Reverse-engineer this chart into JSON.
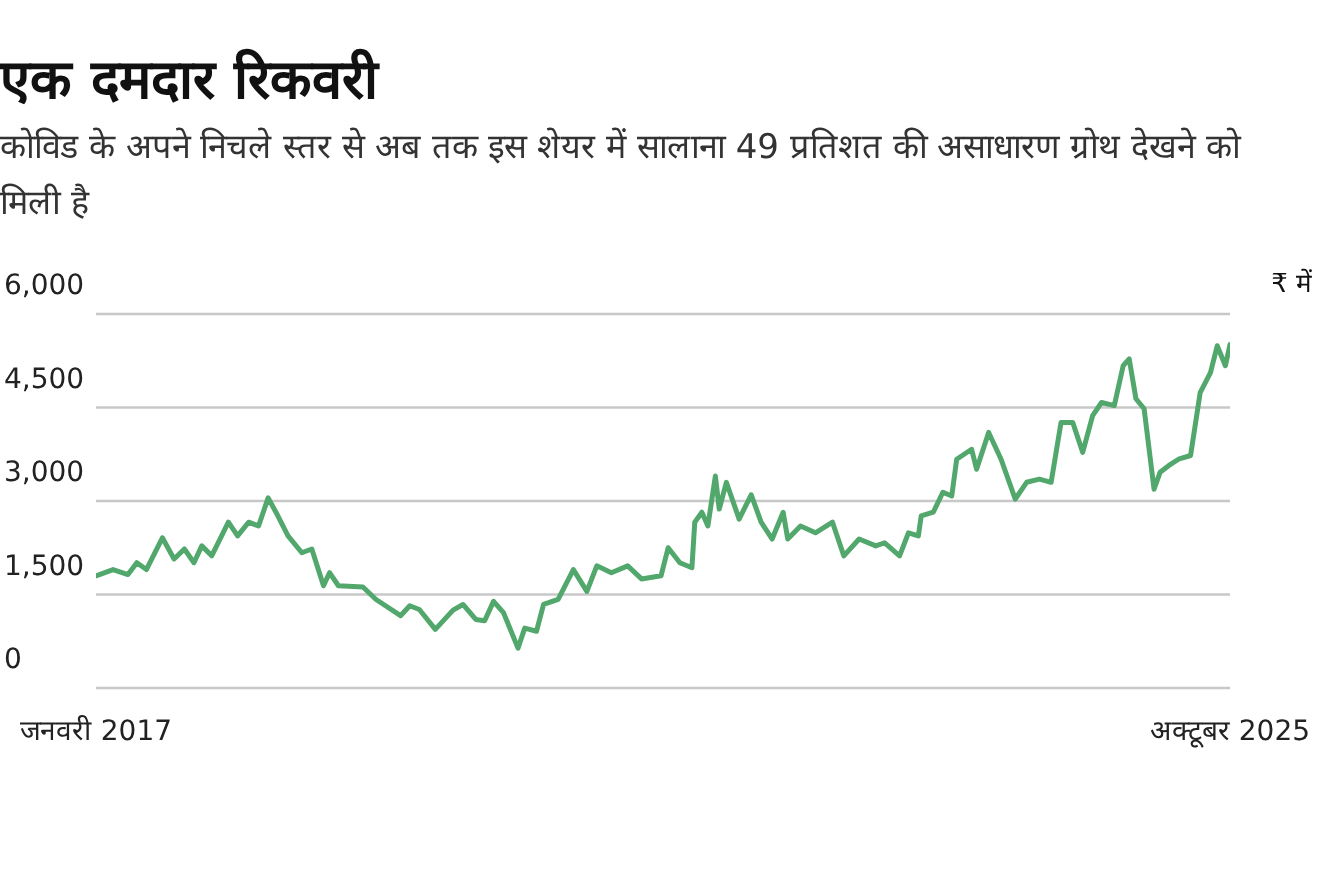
{
  "chart_data": {
    "type": "line",
    "title": "एक दमदार रिकवरी",
    "subtitle": "कोविड के अपने निचले स्तर से अब तक इस शेयर में सालाना 49 प्रतिशत की असाधारण ग्रोथ देखने को मिली है",
    "annotations": [
      "₹ में"
    ],
    "x": [
      "2017-01-01",
      "2017-02-18",
      "2017-04-01",
      "2017-04-26",
      "2017-05-23",
      "2017-07-07",
      "2017-08-09",
      "2017-09-07",
      "2017-10-04",
      "2017-10-26",
      "2017-11-23",
      "2018-01-09",
      "2018-02-04",
      "2018-03-07",
      "2018-04-04",
      "2018-05-01",
      "2018-05-23",
      "2018-06-26",
      "2018-08-04",
      "2018-09-01",
      "2018-10-04",
      "2018-10-21",
      "2018-11-15",
      "2019-01-23",
      "2019-03-01",
      "2019-05-09",
      "2019-06-04",
      "2019-07-01",
      "2019-08-15",
      "2019-10-04",
      "2019-11-01",
      "2019-12-07",
      "2020-01-01",
      "2020-01-26",
      "2020-02-23",
      "2020-04-04",
      "2020-04-23",
      "2020-05-26",
      "2020-06-15",
      "2020-07-26",
      "2020-09-07",
      "2020-10-15",
      "2020-11-12",
      "2020-12-23",
      "2021-02-07",
      "2021-03-18",
      "2021-05-12",
      "2021-06-01",
      "2021-07-04",
      "2021-08-07",
      "2021-08-15",
      "2021-09-04",
      "2021-09-21",
      "2021-10-12",
      "2021-10-23",
      "2021-11-12",
      "2021-12-18",
      "2022-01-21",
      "2022-02-18",
      "2022-03-21",
      "2022-04-21",
      "2022-05-04",
      "2022-06-09",
      "2022-07-21",
      "2022-09-07",
      "2022-10-09",
      "2022-11-21",
      "2023-01-07",
      "2023-02-01",
      "2023-03-15",
      "2023-04-09",
      "2023-05-07",
      "2023-05-15",
      "2023-06-18",
      "2023-07-15",
      "2023-08-09",
      "2023-08-23",
      "2023-10-04",
      "2023-10-18",
      "2023-11-21",
      "2023-12-26",
      "2024-02-04",
      "2024-03-07",
      "2024-04-12",
      "2024-05-15",
      "2024-06-12",
      "2024-07-15",
      "2024-08-12",
      "2024-09-09",
      "2024-10-04",
      "2024-11-09",
      "2024-12-04",
      "2024-12-21",
      "2025-01-09",
      "2025-02-01",
      "2025-03-01",
      "2025-03-18",
      "2025-04-12",
      "2025-05-09",
      "2025-06-12",
      "2025-07-09",
      "2025-08-07",
      "2025-08-26",
      "2025-09-18",
      "2025-10-01"
    ],
    "series": [
      {
        "color": "#52a86c",
        "values": [
          1800,
          1900,
          1820,
          2010,
          1900,
          2410,
          2070,
          2230,
          2010,
          2280,
          2120,
          2660,
          2440,
          2660,
          2600,
          3050,
          2820,
          2440,
          2170,
          2230,
          1640,
          1850,
          1640,
          1620,
          1420,
          1160,
          1320,
          1260,
          940,
          1250,
          1340,
          1100,
          1080,
          1390,
          1210,
          640,
          960,
          910,
          1340,
          1420,
          1900,
          1550,
          1960,
          1850,
          1960,
          1750,
          1800,
          2250,
          2010,
          1930,
          2660,
          2820,
          2600,
          3400,
          2870,
          3300,
          2710,
          3100,
          2660,
          2390,
          2820,
          2390,
          2600,
          2490,
          2660,
          2120,
          2390,
          2280,
          2330,
          2120,
          2490,
          2440,
          2760,
          2820,
          3140,
          3080,
          3670,
          3830,
          3510,
          4100,
          3670,
          3030,
          3300,
          3350,
          3300,
          4260,
          4260,
          3780,
          4370,
          4580,
          4530,
          5170,
          5280,
          4640,
          4480,
          3190,
          3460,
          3570,
          3670,
          3730,
          4740,
          5060,
          5490,
          5170,
          5510
        ]
      }
    ],
    "xlim": [
      "2017-01",
      "2025-10"
    ],
    "xticks": [
      {
        "value": "2017-01",
        "label": "जनवरी 2017"
      },
      {
        "value": "2025-10",
        "label": "अक्टूबर 2025"
      }
    ],
    "ylim": [
      0,
      6000
    ],
    "yticks": [
      {
        "value": 0,
        "label": "0"
      },
      {
        "value": 1500,
        "label": "1,500"
      },
      {
        "value": 3000,
        "label": "3,000"
      },
      {
        "value": 4500,
        "label": "4,500"
      },
      {
        "value": 6000,
        "label": "6,000"
      }
    ],
    "grid": "y",
    "marker": "none",
    "line_style": "solid"
  }
}
